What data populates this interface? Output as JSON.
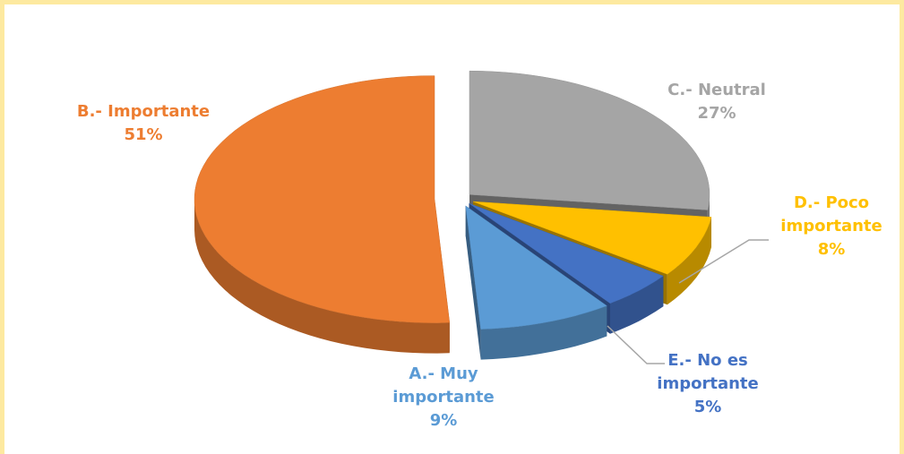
{
  "chart_data": {
    "type": "pie",
    "categories": [
      "A.- Muy importante",
      "B.- Importante",
      "C.- Neutral",
      "D.- Poco importante",
      "E.- No es importante"
    ],
    "values": [
      9,
      51,
      27,
      8,
      5
    ],
    "value_labels": [
      "9%",
      "51%",
      "27%",
      "8%",
      "5%"
    ],
    "colors": [
      "#5b9bd5",
      "#ed7d31",
      "#a5a5a5",
      "#ffc000",
      "#4472c4"
    ],
    "start_angle": 144,
    "three_d": true
  }
}
